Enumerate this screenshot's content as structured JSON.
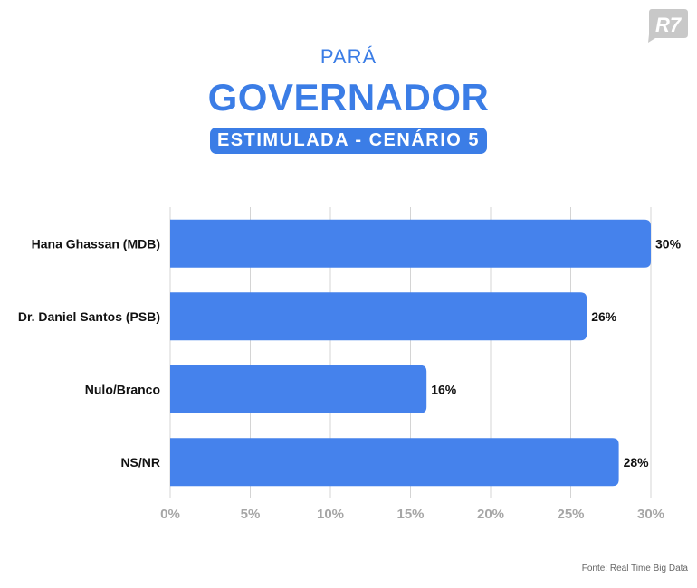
{
  "header": {
    "kicker": "PARÁ",
    "title": "GOVERNADOR",
    "subtitle": "ESTIMULADA - CENÁRIO 5"
  },
  "logo": {
    "text": "R7",
    "color": "#c8c8c8"
  },
  "source": "Fonte: Real Time Big Data",
  "colors": {
    "accent": "#3b7de6",
    "bar": "#4582ec",
    "grid": "#d4d4d4",
    "tick": "#a6a6a6"
  },
  "chart_data": {
    "type": "bar",
    "orientation": "horizontal",
    "categories": [
      "Hana Ghassan (MDB)",
      "Dr. Daniel Santos (PSB)",
      "Nulo/Branco",
      "NS/NR"
    ],
    "values": [
      30,
      26,
      16,
      28
    ],
    "value_labels": [
      "30%",
      "26%",
      "16%",
      "28%"
    ],
    "xlim": [
      0,
      30
    ],
    "xticks": [
      0,
      5,
      10,
      15,
      20,
      25,
      30
    ],
    "xtick_labels": [
      "0%",
      "5%",
      "10%",
      "15%",
      "20%",
      "25%",
      "30%"
    ],
    "grid": true,
    "legend": "none"
  }
}
